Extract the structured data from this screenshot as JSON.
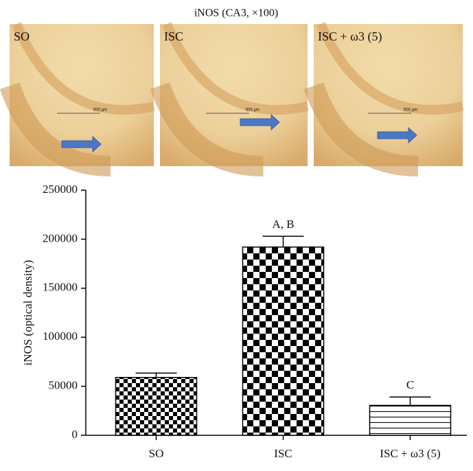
{
  "panel_title": "iNOS (CA3, ×100)",
  "images": [
    {
      "label": "SO",
      "scale_bar": "500 µm"
    },
    {
      "label": "ISC",
      "scale_bar": "500 µm"
    },
    {
      "label": "ISC + ω3 (5)",
      "scale_bar": "500 µm"
    }
  ],
  "chart_data": {
    "type": "bar",
    "y_label": "iNOS (optical density)",
    "categories": [
      "SO",
      "ISC",
      "ISC + ω3 (5)"
    ],
    "values": [
      59000,
      192000,
      30500
    ],
    "errors": [
      4500,
      11000,
      8500
    ],
    "annotations": [
      null,
      "A, B",
      "C"
    ],
    "patterns": [
      "checker-small",
      "checker-large",
      "horizontal-lines"
    ],
    "color": "#000000",
    "ylim": [
      0,
      250000
    ],
    "yticks": [
      0,
      50000,
      100000,
      150000,
      200000,
      250000
    ]
  }
}
